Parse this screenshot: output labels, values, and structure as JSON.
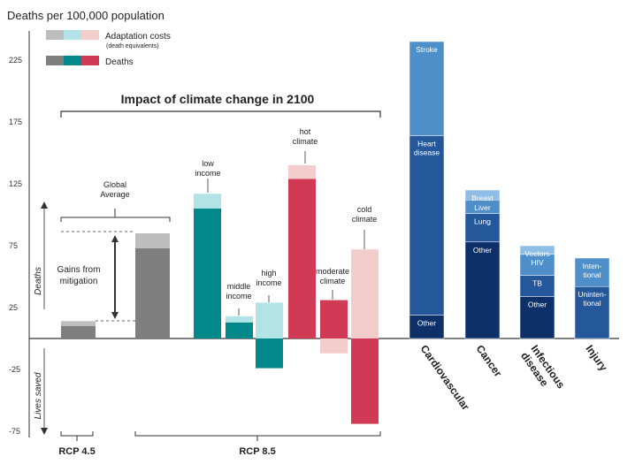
{
  "chart_data": {
    "type": "bar",
    "title": "Impact of climate change in 2100",
    "ylabel": "Deaths per 100,000 population",
    "ylim": [
      -75,
      240
    ],
    "yticks": [
      225,
      175,
      125,
      75,
      25,
      -25,
      -75
    ],
    "axis_side_labels": {
      "upper": "Deaths",
      "lower": "Lives saved"
    },
    "legend": {
      "placement": "top-left",
      "adaptation_label": "Adaptation costs",
      "adaptation_sub": "(death equivalents)",
      "deaths_label": "Deaths",
      "adaptation_colors": [
        "#bdbdbd",
        "#b2e3e6",
        "#f3cccc"
      ],
      "death_colors": [
        "#7f7f7f",
        "#00888a",
        "#d03a55"
      ]
    },
    "groups": [
      "RCP 4.5",
      "RCP 8.5"
    ],
    "scenarios": [
      {
        "name": "RCP 4.5",
        "label": "",
        "deaths": 10,
        "adaptation": 4,
        "color": "#7f7f7f",
        "adapt_color": "#bdbdbd"
      },
      {
        "name": "Global Average",
        "label": "Global\nAverage",
        "deaths": 73,
        "adaptation": 12,
        "color": "#7f7f7f",
        "adapt_color": "#bdbdbd"
      },
      {
        "name": "low income",
        "label": "low\nincome",
        "deaths": 105,
        "adaptation": 12,
        "color": "#00888a",
        "adapt_color": "#b2e3e6"
      },
      {
        "name": "middle income",
        "label": "middle\nincome",
        "deaths": 13,
        "adaptation": 5,
        "color": "#00888a",
        "adapt_color": "#b2e3e6"
      },
      {
        "name": "high income",
        "label": "high\nincome",
        "deaths": -24,
        "adaptation": 29,
        "color": "#00888a",
        "adapt_color": "#b2e3e6"
      },
      {
        "name": "hot climate",
        "label": "hot\nclimate",
        "deaths": 129,
        "adaptation": 11,
        "color": "#d03a55",
        "adapt_color": "#f3cccc"
      },
      {
        "name": "moderate climate",
        "label": "moderate\nclimate",
        "deaths": 31,
        "adaptation": -12,
        "color": "#d03a55",
        "adapt_color": "#f3cccc"
      },
      {
        "name": "cold climate",
        "label": "cold\nclimate",
        "deaths": -69,
        "adaptation": 72,
        "color": "#d03a55",
        "adapt_color": "#f3cccc"
      }
    ],
    "annotations": {
      "gains": "Gains from\nmitigation"
    },
    "causes": [
      {
        "name": "Cardiovascular",
        "segments": [
          {
            "label": "Other",
            "value": 19,
            "color": "#0d3068"
          },
          {
            "label": "Heart\ndisease",
            "value": 145,
            "color": "#25579b"
          },
          {
            "label": "Stroke",
            "value": 76,
            "color": "#4f8fc9"
          }
        ]
      },
      {
        "name": "Cancer",
        "segments": [
          {
            "label": "Other",
            "value": 78,
            "color": "#0d3068"
          },
          {
            "label": "Lung",
            "value": 23,
            "color": "#25579b"
          },
          {
            "label": "Liver",
            "value": 11,
            "color": "#4f8fc9"
          },
          {
            "label": "Breast",
            "value": 8,
            "color": "#8fbde6"
          }
        ]
      },
      {
        "name": "Infectious\ndisease",
        "segments": [
          {
            "label": "Other",
            "value": 34,
            "color": "#0d3068"
          },
          {
            "label": "TB",
            "value": 17,
            "color": "#25579b"
          },
          {
            "label": "HIV",
            "value": 17,
            "color": "#4f8fc9"
          },
          {
            "label": "Vectors",
            "value": 7,
            "color": "#8fbde6"
          }
        ]
      },
      {
        "name": "Injury",
        "segments": [
          {
            "label": "Uninten-\ntional",
            "value": 42,
            "color": "#25579b"
          },
          {
            "label": "Inten-\ntional",
            "value": 23,
            "color": "#4f8fc9"
          }
        ]
      }
    ]
  }
}
